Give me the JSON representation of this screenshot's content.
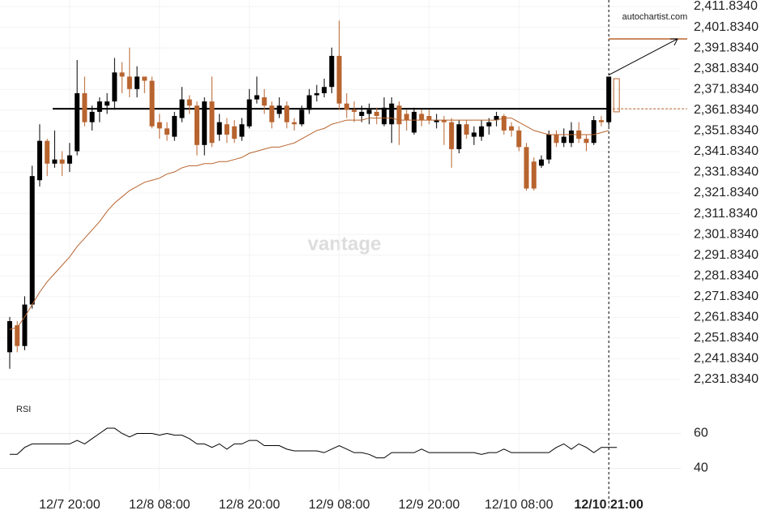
{
  "chart_data": {
    "type": "candlestick",
    "brand": "autochartist.com",
    "watermark": "vantage",
    "categories": [
      null,
      null,
      null,
      null,
      null,
      null,
      null,
      null,
      "12/7 20:00",
      null,
      null,
      null,
      null,
      null,
      null,
      null,
      null,
      null,
      null,
      null,
      "12/8 08:00",
      null,
      null,
      null,
      null,
      null,
      null,
      null,
      null,
      null,
      null,
      null,
      "12/8 20:00",
      null,
      null,
      null,
      null,
      null,
      null,
      null,
      null,
      null,
      null,
      null,
      "12/9 08:00",
      null,
      null,
      null,
      null,
      null,
      null,
      null,
      null,
      null,
      null,
      null,
      "12/9 20:00",
      null,
      null,
      null,
      null,
      null,
      null,
      null,
      null,
      null,
      null,
      null,
      "12/10 08:00",
      null,
      null,
      null,
      null,
      null,
      null,
      null,
      null,
      null,
      null,
      null,
      "12/10 21:00"
    ],
    "open": [
      2245,
      2258,
      2248,
      2268,
      2328,
      2347,
      2336,
      2338,
      2336,
      2342,
      2370,
      2356,
      2361,
      2364,
      2366,
      2380,
      2378,
      2372,
      2378,
      2376,
      2356,
      2353,
      2349,
      2358,
      2367,
      2364,
      2345,
      2366,
      2350,
      2355,
      2354,
      2349,
      2354,
      2367,
      2368,
      2364,
      2360,
      2364,
      2356,
      2355,
      2362,
      2369,
      2370,
      2373,
      2388,
      2365,
      2362,
      2359,
      2360,
      2361,
      2355,
      2355,
      2364,
      2360,
      2351,
      2360,
      2359,
      2356,
      2357,
      2356,
      2343,
      2355,
      2349,
      2349,
      2354,
      2357,
      2359,
      2354,
      2352,
      2344,
      2337,
      2335,
      2338,
      2350,
      2346,
      2346,
      2352,
      2348,
      2346,
      2357,
      2356
    ],
    "high": [
      2262,
      2260,
      2272,
      2335,
      2355,
      2348,
      2352,
      2342,
      2346,
      2386,
      2378,
      2364,
      2368,
      2370,
      2387,
      2385,
      2392,
      2383,
      2378,
      2378,
      2360,
      2356,
      2361,
      2373,
      2369,
      2366,
      2368,
      2378,
      2360,
      2358,
      2357,
      2358,
      2372,
      2378,
      2372,
      2366,
      2368,
      2366,
      2358,
      2364,
      2372,
      2374,
      2377,
      2392,
      2405,
      2370,
      2366,
      2364,
      2365,
      2363,
      2368,
      2368,
      2366,
      2362,
      2363,
      2362,
      2362,
      2360,
      2359,
      2358,
      2357,
      2357,
      2354,
      2357,
      2358,
      2361,
      2360,
      2356,
      2354,
      2346,
      2339,
      2340,
      2352,
      2352,
      2353,
      2356,
      2356,
      2350,
      2359,
      2359,
      2378
    ],
    "low": [
      2237,
      2245,
      2246,
      2266,
      2325,
      2330,
      2334,
      2330,
      2332,
      2340,
      2354,
      2352,
      2356,
      2360,
      2362,
      2370,
      2368,
      2368,
      2370,
      2353,
      2348,
      2347,
      2347,
      2356,
      2360,
      2340,
      2340,
      2344,
      2347,
      2346,
      2346,
      2347,
      2353,
      2365,
      2360,
      2353,
      2358,
      2353,
      2352,
      2354,
      2360,
      2366,
      2368,
      2370,
      2362,
      2358,
      2356,
      2356,
      2355,
      2355,
      2354,
      2346,
      2345,
      2352,
      2350,
      2354,
      2355,
      2353,
      2345,
      2334,
      2341,
      2348,
      2345,
      2347,
      2350,
      2354,
      2350,
      2349,
      2342,
      2323,
      2323,
      2334,
      2336,
      2344,
      2344,
      2344,
      2346,
      2342,
      2345,
      2354,
      2354
    ],
    "close": [
      2260,
      2248,
      2268,
      2330,
      2347,
      2336,
      2338,
      2336,
      2340,
      2370,
      2356,
      2361,
      2366,
      2366,
      2380,
      2378,
      2372,
      2378,
      2376,
      2354,
      2353,
      2350,
      2359,
      2367,
      2364,
      2345,
      2366,
      2346,
      2356,
      2350,
      2348,
      2355,
      2367,
      2369,
      2364,
      2356,
      2364,
      2356,
      2355,
      2362,
      2369,
      2370,
      2373,
      2388,
      2365,
      2362,
      2361,
      2361,
      2362,
      2359,
      2363,
      2365,
      2355,
      2357,
      2361,
      2357,
      2357,
      2357,
      2356,
      2343,
      2355,
      2350,
      2351,
      2354,
      2356,
      2359,
      2352,
      2352,
      2344,
      2324,
      2324,
      2338,
      2350,
      2346,
      2349,
      2352,
      2348,
      2346,
      2357,
      2356,
      2378
    ],
    "up_color": "#000000",
    "down_color": "#b8642f",
    "series": [
      {
        "color": "#b8642f",
        "values": [
          2256,
          2257,
          2262,
          2268,
          2274,
          2279,
          2283,
          2287,
          2291,
          2296,
          2300,
          2304,
          2308,
          2313,
          2317,
          2320,
          2323,
          2325,
          2327,
          2328,
          2329,
          2331,
          2332,
          2334,
          2335,
          2335,
          2336,
          2336,
          2337,
          2337,
          2338,
          2339,
          2341,
          2342,
          2343,
          2344,
          2344,
          2345,
          2346,
          2348,
          2350,
          2352,
          2353,
          2355,
          2356,
          2357,
          2357,
          2357,
          2358,
          2358,
          2358,
          2358,
          2357,
          2357,
          2357,
          2357,
          2357,
          2357,
          2357,
          2357,
          2357,
          2357,
          2357,
          2357,
          2357,
          2357,
          2358,
          2358,
          2356,
          2354,
          2352,
          2351,
          2350,
          2350,
          2350,
          2350,
          2350,
          2350,
          2350,
          2351,
          2352
        ]
      }
    ],
    "level": 2362.5,
    "target": 2396.2,
    "forecast_range": [
      2361,
      2377
    ],
    "ylim": [
      2231.834,
      2411.834
    ],
    "yticks": [
      {
        "value": 2411.834,
        "label": "2,411.8340"
      },
      {
        "value": 2401.834,
        "label": "2,401.8340"
      },
      {
        "value": 2391.834,
        "label": "2,391.8340"
      },
      {
        "value": 2381.834,
        "label": "2,381.8340"
      },
      {
        "value": 2371.834,
        "label": "2,371.8340"
      },
      {
        "value": 2361.834,
        "label": "2,361.8340"
      },
      {
        "value": 2351.834,
        "label": "2,351.8340"
      },
      {
        "value": 2341.834,
        "label": "2,341.8340"
      },
      {
        "value": 2331.834,
        "label": "2,331.8340"
      },
      {
        "value": 2321.834,
        "label": "2,321.8340"
      },
      {
        "value": 2311.834,
        "label": "2,311.8340"
      },
      {
        "value": 2301.834,
        "label": "2,301.8340"
      },
      {
        "value": 2291.834,
        "label": "2,291.8340"
      },
      {
        "value": 2281.834,
        "label": "2,281.8340"
      },
      {
        "value": 2271.834,
        "label": "2,271.8340"
      },
      {
        "value": 2261.834,
        "label": "2,261.8340"
      },
      {
        "value": 2251.834,
        "label": "2,251.8340"
      },
      {
        "value": 2241.834,
        "label": "2,241.8340"
      },
      {
        "value": 2231.834,
        "label": "2,231.8340"
      }
    ],
    "rsi": {
      "title": "RSI",
      "color": "#000000",
      "values": [
        48,
        48,
        52,
        54,
        54,
        54,
        54,
        54,
        54,
        56,
        54,
        57,
        60,
        63,
        63,
        60,
        58,
        60,
        60,
        60,
        59,
        60,
        59,
        59,
        57,
        54,
        54,
        52,
        54,
        51,
        54,
        54,
        56,
        56,
        53,
        53,
        53,
        51,
        50,
        50,
        50,
        50,
        49,
        51,
        53,
        51,
        49,
        49,
        48,
        46,
        46,
        49,
        49,
        49,
        49,
        51,
        49,
        49,
        49,
        49,
        49,
        49,
        49,
        48,
        49,
        49,
        51,
        49,
        49,
        49,
        49,
        49,
        49,
        52,
        54,
        51,
        54,
        52,
        49,
        52,
        52
      ],
      "ylim": [
        30,
        70
      ],
      "yticks": [
        60,
        40
      ]
    }
  }
}
